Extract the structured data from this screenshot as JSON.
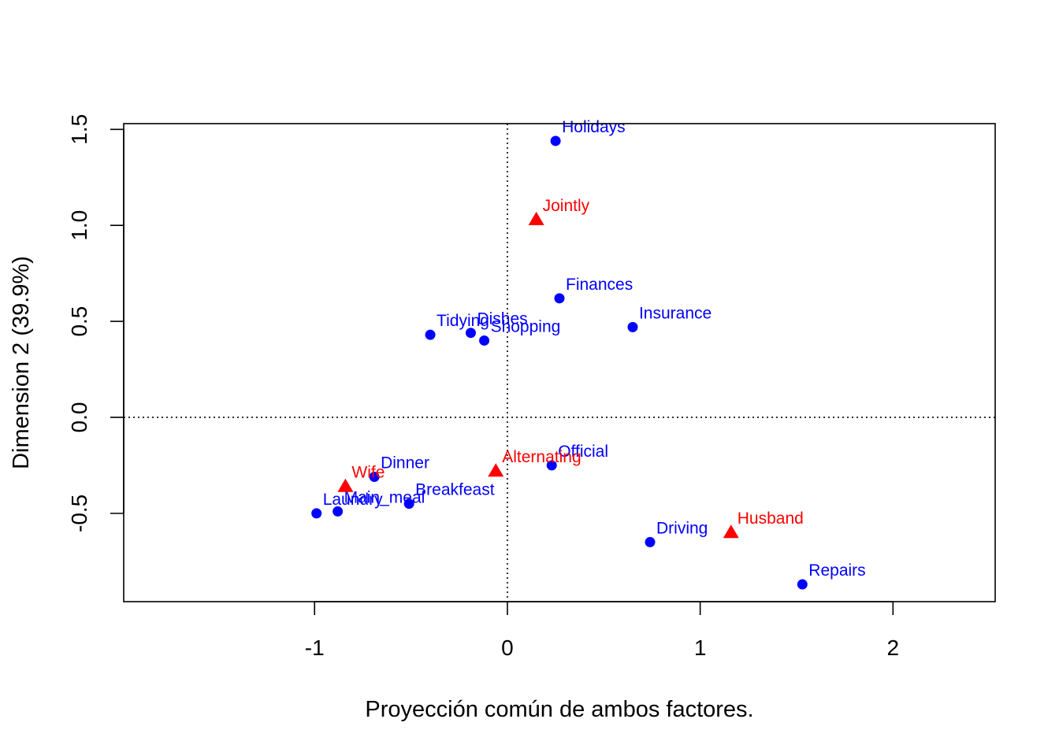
{
  "chart_data": {
    "type": "scatter",
    "xlabel": "Proyección común de ambos factores.",
    "ylabel": "Dimension 2 (39.9%)",
    "xlim": [
      -1.99,
      2.53
    ],
    "ylim": [
      -0.96,
      1.53
    ],
    "xticks": [
      "-1",
      "0",
      "1",
      "2"
    ],
    "xtick_values": [
      -1,
      0,
      1,
      2
    ],
    "yticks": [
      "-0.5",
      "0.0",
      "0.5",
      "1.0",
      "1.5"
    ],
    "ytick_values": [
      -0.5,
      0.0,
      0.5,
      1.0,
      1.5
    ],
    "reference_lines": {
      "x": 0,
      "y": 0,
      "style": "dotted"
    },
    "grid": false,
    "series": [
      {
        "marker": "circle",
        "color": "#0000ff",
        "points": [
          {
            "label": "Holidays",
            "x": 0.25,
            "y": 1.44
          },
          {
            "label": "Finances",
            "x": 0.27,
            "y": 0.62
          },
          {
            "label": "Insurance",
            "x": 0.65,
            "y": 0.47
          },
          {
            "label": "Tidying",
            "x": -0.4,
            "y": 0.43
          },
          {
            "label": "Dishes",
            "x": -0.19,
            "y": 0.44
          },
          {
            "label": "Shopping",
            "x": -0.12,
            "y": 0.4
          },
          {
            "label": "Official",
            "x": 0.23,
            "y": -0.25
          },
          {
            "label": "Dinner",
            "x": -0.69,
            "y": -0.31
          },
          {
            "label": "Breakfeast",
            "x": -0.51,
            "y": -0.45
          },
          {
            "label": "Laundry",
            "x": -0.99,
            "y": -0.5
          },
          {
            "label": "Main_meal",
            "x": -0.88,
            "y": -0.49
          },
          {
            "label": "Driving",
            "x": 0.74,
            "y": -0.65
          },
          {
            "label": "Repairs",
            "x": 1.53,
            "y": -0.87
          }
        ]
      },
      {
        "marker": "triangle",
        "color": "#ff0000",
        "points": [
          {
            "label": "Jointly",
            "x": 0.15,
            "y": 1.03
          },
          {
            "label": "Alternating",
            "x": -0.06,
            "y": -0.28
          },
          {
            "label": "Wife",
            "x": -0.84,
            "y": -0.36
          },
          {
            "label": "Husband",
            "x": 1.16,
            "y": -0.6
          }
        ]
      }
    ]
  }
}
